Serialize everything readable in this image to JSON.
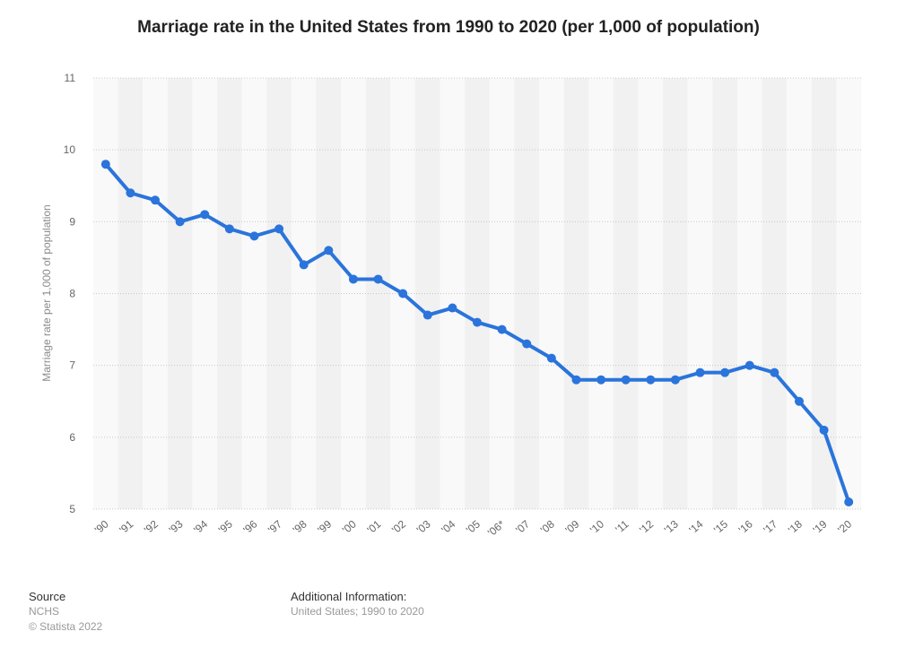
{
  "chart_data": {
    "type": "line",
    "title": "Marriage rate in the United States from 1990 to 2020 (per 1,000 of population)",
    "ylabel": "Marriage rate per 1,000 of population",
    "xlabel": "",
    "categories": [
      "'90",
      "'91",
      "'92",
      "'93",
      "'94",
      "'95",
      "'96",
      "'97",
      "'98",
      "'99",
      "'00",
      "'01",
      "'02",
      "'03",
      "'04",
      "'05",
      "'06*",
      "'07",
      "'08",
      "'09",
      "'10",
      "'11",
      "'12",
      "'13",
      "'14",
      "'15",
      "'16",
      "'17",
      "'18",
      "'19",
      "'20"
    ],
    "series": [
      {
        "values": [
          9.8,
          9.4,
          9.3,
          9.0,
          9.1,
          8.9,
          8.8,
          8.9,
          8.4,
          8.6,
          8.2,
          8.2,
          8.0,
          7.7,
          7.8,
          7.6,
          7.5,
          7.3,
          7.1,
          6.8,
          6.8,
          6.8,
          6.8,
          6.8,
          6.9,
          6.9,
          7.0,
          6.9,
          6.5,
          6.1,
          5.1
        ]
      }
    ],
    "ylim": [
      5,
      11
    ],
    "yticks": [
      5,
      6,
      7,
      8,
      9,
      10,
      11
    ],
    "grid": true,
    "line_color": "#2a74db"
  },
  "footer": {
    "source_heading": "Source",
    "source_name": "NCHS",
    "copyright": "© Statista 2022",
    "additional_heading": "Additional Information:",
    "additional_text": "United States; 1990 to 2020"
  }
}
